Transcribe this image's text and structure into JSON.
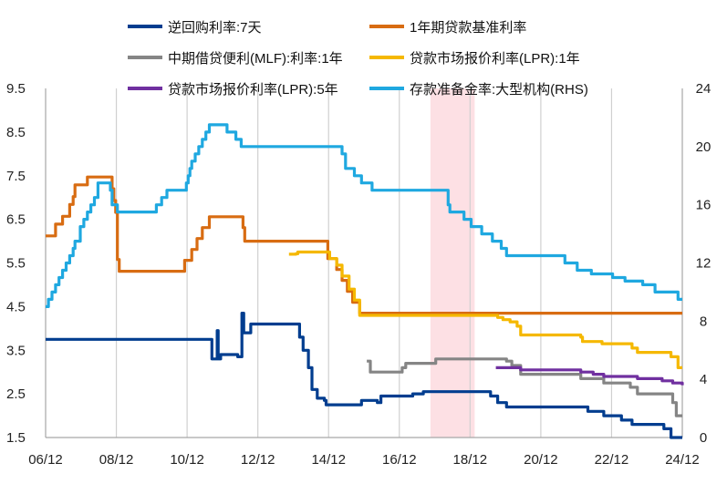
{
  "chart_data": {
    "type": "line",
    "title": "",
    "x_ticks": [
      "06/12",
      "08/12",
      "10/12",
      "12/12",
      "14/12",
      "16/12",
      "18/12",
      "20/12",
      "22/12",
      "24/12"
    ],
    "x_range": [
      2006.92,
      2024.92
    ],
    "y_left": {
      "ticks": [
        "1.5",
        "2.5",
        "3.5",
        "4.5",
        "5.5",
        "6.5",
        "7.5",
        "8.5",
        "9.5"
      ],
      "range": [
        1.5,
        9.5
      ]
    },
    "y_right": {
      "ticks": [
        "0",
        "4",
        "8",
        "12",
        "16",
        "20",
        "24"
      ],
      "range": [
        0,
        24
      ]
    },
    "legend_placement": "top",
    "grid": "vertical lines at x ticks",
    "shaded_period": [
      2017.8,
      2019.05
    ],
    "series": [
      {
        "name": "逆回购利率:7天",
        "color": "#003d8f",
        "axis": "left",
        "points": [
          [
            2006.92,
            3.75
          ],
          [
            2011.6,
            3.75
          ],
          [
            2011.62,
            3.3
          ],
          [
            2011.75,
            3.3
          ],
          [
            2011.77,
            3.95
          ],
          [
            2011.8,
            3.3
          ],
          [
            2011.85,
            3.3
          ],
          [
            2011.87,
            3.4
          ],
          [
            2012.35,
            3.35
          ],
          [
            2012.45,
            3.35
          ],
          [
            2012.47,
            4.35
          ],
          [
            2012.52,
            3.9
          ],
          [
            2012.7,
            3.9
          ],
          [
            2012.72,
            4.1
          ],
          [
            2013.95,
            4.1
          ],
          [
            2014.1,
            3.8
          ],
          [
            2014.2,
            3.5
          ],
          [
            2014.35,
            3.1
          ],
          [
            2014.45,
            2.6
          ],
          [
            2014.6,
            2.4
          ],
          [
            2014.8,
            2.35
          ],
          [
            2014.85,
            2.25
          ],
          [
            2015.8,
            2.25
          ],
          [
            2015.85,
            2.35
          ],
          [
            2016.3,
            2.3
          ],
          [
            2016.4,
            2.45
          ],
          [
            2016.95,
            2.45
          ],
          [
            2017.3,
            2.5
          ],
          [
            2017.6,
            2.55
          ],
          [
            2019.0,
            2.55
          ],
          [
            2019.5,
            2.45
          ],
          [
            2019.7,
            2.3
          ],
          [
            2019.95,
            2.2
          ],
          [
            2020.95,
            2.2
          ],
          [
            2021.1,
            2.2
          ],
          [
            2021.95,
            2.2
          ],
          [
            2022.25,
            2.1
          ],
          [
            2022.7,
            2.0
          ],
          [
            2023.2,
            1.9
          ],
          [
            2023.5,
            1.8
          ],
          [
            2024.4,
            1.7
          ],
          [
            2024.6,
            1.5
          ],
          [
            2024.92,
            1.5
          ]
        ]
      },
      {
        "name": "1年期贷款基准利率",
        "color": "#d86c12",
        "axis": "left",
        "points": [
          [
            2006.92,
            6.12
          ],
          [
            2007.2,
            6.39
          ],
          [
            2007.4,
            6.57
          ],
          [
            2007.6,
            6.84
          ],
          [
            2007.7,
            7.02
          ],
          [
            2007.75,
            7.29
          ],
          [
            2008.05,
            7.29
          ],
          [
            2008.1,
            7.47
          ],
          [
            2008.75,
            7.47
          ],
          [
            2008.8,
            7.2
          ],
          [
            2008.85,
            6.93
          ],
          [
            2008.9,
            6.66
          ],
          [
            2008.95,
            5.58
          ],
          [
            2009.0,
            5.31
          ],
          [
            2010.8,
            5.31
          ],
          [
            2010.85,
            5.56
          ],
          [
            2011.05,
            5.81
          ],
          [
            2011.2,
            6.06
          ],
          [
            2011.35,
            6.31
          ],
          [
            2011.55,
            6.56
          ],
          [
            2012.45,
            6.56
          ],
          [
            2012.5,
            6.31
          ],
          [
            2012.55,
            6.0
          ],
          [
            2014.85,
            6.0
          ],
          [
            2014.9,
            5.6
          ],
          [
            2015.15,
            5.35
          ],
          [
            2015.3,
            5.1
          ],
          [
            2015.45,
            4.85
          ],
          [
            2015.6,
            4.6
          ],
          [
            2015.8,
            4.35
          ],
          [
            2024.92,
            4.35
          ]
        ]
      },
      {
        "name": "中期借贷便利(MLF):利率:1年",
        "color": "#858585",
        "axis": "left",
        "points": [
          [
            2016.0,
            3.25
          ],
          [
            2016.1,
            3.0
          ],
          [
            2016.9,
            3.0
          ],
          [
            2017.0,
            3.1
          ],
          [
            2017.1,
            3.2
          ],
          [
            2017.9,
            3.2
          ],
          [
            2017.95,
            3.3
          ],
          [
            2018.1,
            3.3
          ],
          [
            2019.85,
            3.3
          ],
          [
            2019.95,
            3.25
          ],
          [
            2020.1,
            3.15
          ],
          [
            2020.35,
            2.95
          ],
          [
            2021.95,
            2.95
          ],
          [
            2022.05,
            2.85
          ],
          [
            2022.7,
            2.75
          ],
          [
            2023.45,
            2.65
          ],
          [
            2023.65,
            2.5
          ],
          [
            2024.55,
            2.5
          ],
          [
            2024.65,
            2.3
          ],
          [
            2024.75,
            2.0
          ],
          [
            2024.92,
            2.0
          ]
        ]
      },
      {
        "name": "贷款市场报价利率(LPR):1年",
        "color": "#f5b800",
        "axis": "left",
        "points": [
          [
            2013.8,
            5.7
          ],
          [
            2014.0,
            5.71
          ],
          [
            2014.05,
            5.75
          ],
          [
            2014.85,
            5.75
          ],
          [
            2014.95,
            5.6
          ],
          [
            2015.15,
            5.45
          ],
          [
            2015.3,
            5.2
          ],
          [
            2015.5,
            4.9
          ],
          [
            2015.65,
            4.65
          ],
          [
            2015.8,
            4.3
          ],
          [
            2019.6,
            4.3
          ],
          [
            2019.7,
            4.25
          ],
          [
            2019.85,
            4.2
          ],
          [
            2020.05,
            4.15
          ],
          [
            2020.25,
            4.05
          ],
          [
            2020.35,
            3.85
          ],
          [
            2021.95,
            3.85
          ],
          [
            2022.05,
            3.8
          ],
          [
            2022.1,
            3.7
          ],
          [
            2022.65,
            3.65
          ],
          [
            2023.5,
            3.55
          ],
          [
            2023.65,
            3.45
          ],
          [
            2024.5,
            3.45
          ],
          [
            2024.6,
            3.35
          ],
          [
            2024.8,
            3.1
          ],
          [
            2024.92,
            3.1
          ]
        ]
      },
      {
        "name": "贷款市场报价利率(LPR):5年",
        "color": "#7030a0",
        "axis": "left",
        "points": [
          [
            2019.65,
            3.1
          ],
          [
            2020.0,
            3.1
          ],
          [
            2020.35,
            3.05
          ],
          [
            2022.0,
            3.05
          ],
          [
            2022.05,
            3.0
          ],
          [
            2022.4,
            2.95
          ],
          [
            2022.7,
            2.9
          ],
          [
            2023.5,
            2.9
          ],
          [
            2023.65,
            2.85
          ],
          [
            2024.2,
            2.85
          ],
          [
            2024.35,
            2.8
          ],
          [
            2024.55,
            2.8
          ],
          [
            2024.65,
            2.75
          ],
          [
            2024.92,
            2.7
          ]
        ]
      },
      {
        "name": "存款准备金率:大型机构(RHS)",
        "color": "#1fa8e0",
        "axis": "right",
        "points": [
          [
            2006.92,
            9.0
          ],
          [
            2007.0,
            9.5
          ],
          [
            2007.1,
            10.0
          ],
          [
            2007.2,
            10.5
          ],
          [
            2007.3,
            11.0
          ],
          [
            2007.4,
            11.5
          ],
          [
            2007.5,
            12.0
          ],
          [
            2007.6,
            12.5
          ],
          [
            2007.7,
            13.0
          ],
          [
            2007.75,
            13.5
          ],
          [
            2007.9,
            14.5
          ],
          [
            2008.0,
            15.0
          ],
          [
            2008.1,
            15.5
          ],
          [
            2008.2,
            16.0
          ],
          [
            2008.3,
            16.5
          ],
          [
            2008.4,
            17.5
          ],
          [
            2008.7,
            17.5
          ],
          [
            2008.75,
            17.0
          ],
          [
            2008.8,
            16.0
          ],
          [
            2008.95,
            15.5
          ],
          [
            2010.0,
            15.5
          ],
          [
            2010.05,
            16.0
          ],
          [
            2010.2,
            16.5
          ],
          [
            2010.35,
            17.0
          ],
          [
            2010.85,
            17.0
          ],
          [
            2010.9,
            17.5
          ],
          [
            2010.95,
            18.0
          ],
          [
            2011.0,
            18.5
          ],
          [
            2011.05,
            19.0
          ],
          [
            2011.15,
            19.5
          ],
          [
            2011.25,
            20.0
          ],
          [
            2011.35,
            20.5
          ],
          [
            2011.45,
            21.0
          ],
          [
            2011.55,
            21.5
          ],
          [
            2012.0,
            21.5
          ],
          [
            2012.05,
            21.0
          ],
          [
            2012.3,
            20.5
          ],
          [
            2012.45,
            20.0
          ],
          [
            2015.2,
            20.0
          ],
          [
            2015.3,
            19.5
          ],
          [
            2015.4,
            18.5
          ],
          [
            2015.65,
            18.0
          ],
          [
            2015.85,
            17.5
          ],
          [
            2016.15,
            17.0
          ],
          [
            2018.25,
            17.0
          ],
          [
            2018.3,
            16.0
          ],
          [
            2018.35,
            15.5
          ],
          [
            2018.75,
            15.0
          ],
          [
            2018.95,
            14.5
          ],
          [
            2019.25,
            14.0
          ],
          [
            2019.55,
            13.5
          ],
          [
            2019.8,
            13.0
          ],
          [
            2019.95,
            12.5
          ],
          [
            2021.5,
            12.5
          ],
          [
            2021.6,
            12.0
          ],
          [
            2021.95,
            11.5
          ],
          [
            2022.35,
            11.25
          ],
          [
            2022.95,
            11.0
          ],
          [
            2023.3,
            10.75
          ],
          [
            2023.8,
            10.5
          ],
          [
            2024.15,
            10.0
          ],
          [
            2024.8,
            9.5
          ],
          [
            2024.92,
            9.5
          ]
        ]
      }
    ]
  }
}
